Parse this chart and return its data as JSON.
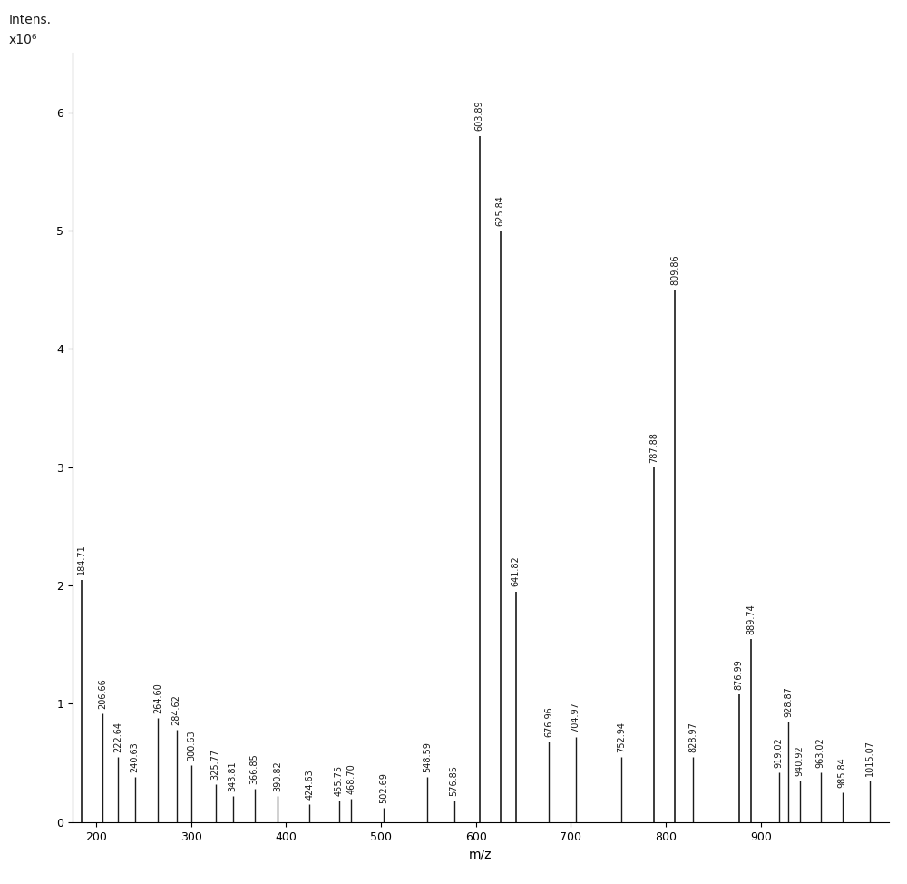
{
  "peaks": [
    {
      "mz": 184.71,
      "intensity": 2.05
    },
    {
      "mz": 206.66,
      "intensity": 0.92
    },
    {
      "mz": 222.64,
      "intensity": 0.55
    },
    {
      "mz": 240.63,
      "intensity": 0.38
    },
    {
      "mz": 264.6,
      "intensity": 0.88
    },
    {
      "mz": 284.62,
      "intensity": 0.78
    },
    {
      "mz": 300.63,
      "intensity": 0.48
    },
    {
      "mz": 325.77,
      "intensity": 0.32
    },
    {
      "mz": 343.81,
      "intensity": 0.22
    },
    {
      "mz": 366.85,
      "intensity": 0.28
    },
    {
      "mz": 390.82,
      "intensity": 0.22
    },
    {
      "mz": 424.63,
      "intensity": 0.15
    },
    {
      "mz": 455.75,
      "intensity": 0.18
    },
    {
      "mz": 468.7,
      "intensity": 0.2
    },
    {
      "mz": 502.69,
      "intensity": 0.12
    },
    {
      "mz": 548.59,
      "intensity": 0.38
    },
    {
      "mz": 576.85,
      "intensity": 0.18
    },
    {
      "mz": 603.89,
      "intensity": 5.8
    },
    {
      "mz": 625.84,
      "intensity": 5.0
    },
    {
      "mz": 641.82,
      "intensity": 1.95
    },
    {
      "mz": 676.96,
      "intensity": 0.68
    },
    {
      "mz": 704.97,
      "intensity": 0.72
    },
    {
      "mz": 752.94,
      "intensity": 0.55
    },
    {
      "mz": 787.88,
      "intensity": 3.0
    },
    {
      "mz": 809.86,
      "intensity": 4.5
    },
    {
      "mz": 828.97,
      "intensity": 0.55
    },
    {
      "mz": 876.99,
      "intensity": 1.08
    },
    {
      "mz": 889.74,
      "intensity": 1.55
    },
    {
      "mz": 919.02,
      "intensity": 0.42
    },
    {
      "mz": 928.87,
      "intensity": 0.85
    },
    {
      "mz": 940.92,
      "intensity": 0.35
    },
    {
      "mz": 963.02,
      "intensity": 0.42
    },
    {
      "mz": 985.84,
      "intensity": 0.25
    },
    {
      "mz": 1015.07,
      "intensity": 0.35
    }
  ],
  "labeled_peaks": [
    {
      "mz": 184.71,
      "intensity": 2.05,
      "label": "184.71"
    },
    {
      "mz": 206.66,
      "intensity": 0.92,
      "label": "206.66"
    },
    {
      "mz": 222.64,
      "intensity": 0.55,
      "label": "222.64"
    },
    {
      "mz": 240.63,
      "intensity": 0.38,
      "label": "240.63"
    },
    {
      "mz": 264.6,
      "intensity": 0.88,
      "label": "264.60"
    },
    {
      "mz": 284.62,
      "intensity": 0.78,
      "label": "284.62"
    },
    {
      "mz": 300.63,
      "intensity": 0.48,
      "label": "300.63"
    },
    {
      "mz": 325.77,
      "intensity": 0.32,
      "label": "325.77"
    },
    {
      "mz": 343.81,
      "intensity": 0.22,
      "label": "343.81"
    },
    {
      "mz": 366.85,
      "intensity": 0.28,
      "label": "366.85"
    },
    {
      "mz": 390.82,
      "intensity": 0.22,
      "label": "390.82"
    },
    {
      "mz": 424.63,
      "intensity": 0.15,
      "label": "424.63"
    },
    {
      "mz": 455.75,
      "intensity": 0.18,
      "label": "455.75"
    },
    {
      "mz": 468.7,
      "intensity": 0.2,
      "label": "468.70"
    },
    {
      "mz": 502.69,
      "intensity": 0.12,
      "label": "502.69"
    },
    {
      "mz": 548.59,
      "intensity": 0.38,
      "label": "548.59"
    },
    {
      "mz": 576.85,
      "intensity": 0.18,
      "label": "576.85"
    },
    {
      "mz": 603.89,
      "intensity": 5.8,
      "label": "603.89"
    },
    {
      "mz": 625.84,
      "intensity": 5.0,
      "label": "625.84"
    },
    {
      "mz": 641.82,
      "intensity": 1.95,
      "label": "641.82"
    },
    {
      "mz": 676.96,
      "intensity": 0.68,
      "label": "676.96"
    },
    {
      "mz": 704.97,
      "intensity": 0.72,
      "label": "704.97"
    },
    {
      "mz": 752.94,
      "intensity": 0.55,
      "label": "752.94"
    },
    {
      "mz": 787.88,
      "intensity": 3.0,
      "label": "787.88"
    },
    {
      "mz": 809.86,
      "intensity": 4.5,
      "label": "809.86"
    },
    {
      "mz": 828.97,
      "intensity": 0.55,
      "label": "828.97"
    },
    {
      "mz": 876.99,
      "intensity": 1.08,
      "label": "876.99"
    },
    {
      "mz": 889.74,
      "intensity": 1.55,
      "label": "889.74"
    },
    {
      "mz": 919.02,
      "intensity": 0.42,
      "label": "919.02"
    },
    {
      "mz": 928.87,
      "intensity": 0.85,
      "label": "928.87"
    },
    {
      "mz": 940.92,
      "intensity": 0.35,
      "label": "940.92"
    },
    {
      "mz": 963.02,
      "intensity": 0.42,
      "label": "963.02"
    },
    {
      "mz": 985.84,
      "intensity": 0.25,
      "label": "985.84"
    },
    {
      "mz": 1015.07,
      "intensity": 0.35,
      "label": "1015.07"
    }
  ],
  "xmin": 175,
  "xmax": 1035,
  "ymin": 0,
  "ymax": 6.5,
  "xlabel": "m/z",
  "xticks": [
    200,
    300,
    400,
    500,
    600,
    700,
    800,
    900
  ],
  "yticks": [
    0,
    1,
    2,
    3,
    4,
    5,
    6
  ],
  "background_color": "#ffffff",
  "line_color": "#1a1a1a",
  "label_fontsize": 7.0,
  "axis_fontsize": 10,
  "tick_fontsize": 9
}
